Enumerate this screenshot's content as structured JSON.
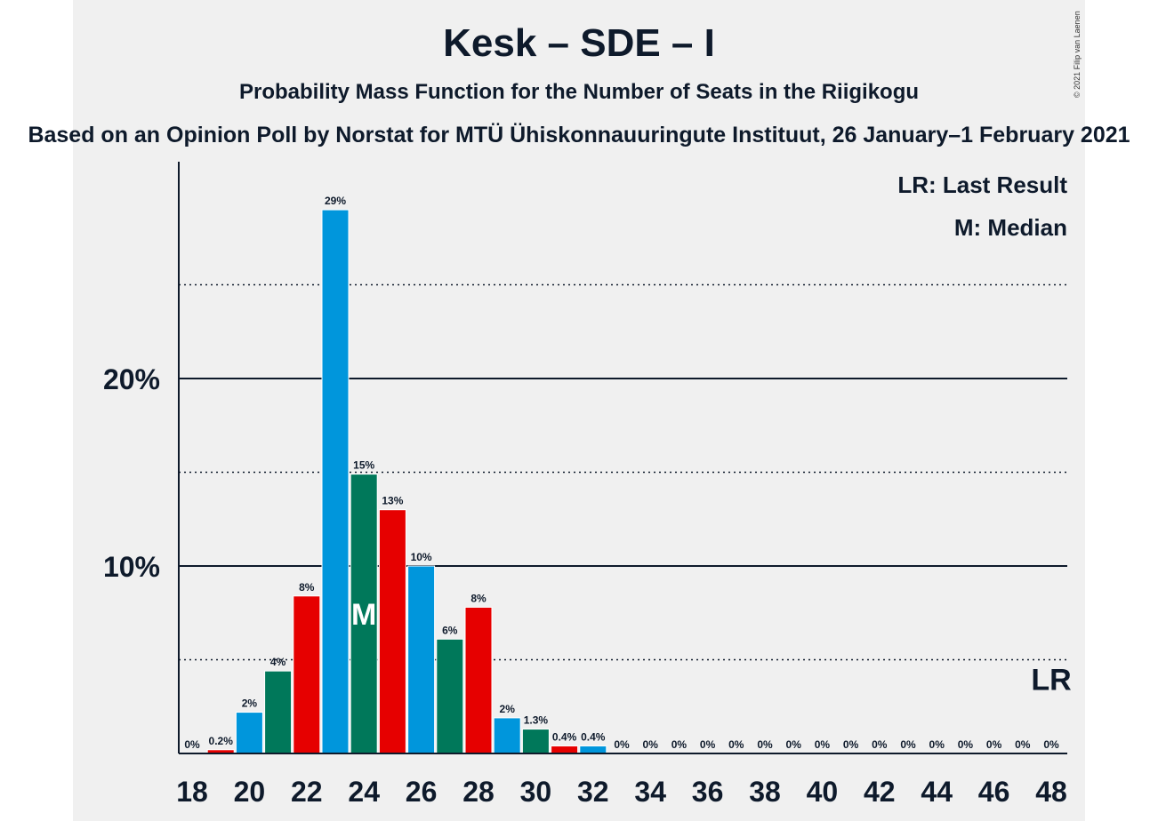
{
  "title": "Kesk – SDE – I",
  "subtitle": "Probability Mass Function for the Number of Seats in the Riigikogu",
  "source": "Based on an Opinion Poll by Norstat for MTÜ Ühiskonnauuringute Instituut, 26 January–1 February 2021",
  "copyright": "© 2021 Filip van Laenen",
  "legend": {
    "last_result": "LR: Last Result",
    "median": "M: Median"
  },
  "chart_data": {
    "type": "bar",
    "title": "Kesk – SDE – I",
    "subtitle": "Probability Mass Function for the Number of Seats in the Riigikogu",
    "x": [
      18,
      19,
      20,
      21,
      22,
      23,
      24,
      25,
      26,
      27,
      28,
      29,
      30,
      31,
      32,
      33,
      34,
      35,
      36,
      37,
      38,
      39,
      40,
      41,
      42,
      43,
      44,
      45,
      46,
      47,
      48
    ],
    "values": [
      0,
      0.2,
      2.2,
      4.4,
      8.4,
      29,
      14.9,
      13,
      10,
      6.1,
      7.8,
      1.9,
      1.3,
      0.4,
      0.4,
      0,
      0,
      0,
      0,
      0,
      0,
      0,
      0,
      0,
      0,
      0,
      0,
      0,
      0,
      0,
      0
    ],
    "data_labels": [
      "0%",
      "0.2%",
      "2%",
      "4%",
      "8%",
      "29%",
      "15%",
      "13%",
      "10%",
      "6%",
      "8%",
      "2%",
      "1.3%",
      "0.4%",
      "0.4%",
      "0%",
      "0%",
      "0%",
      "0%",
      "0%",
      "0%",
      "0%",
      "0%",
      "0%",
      "0%",
      "0%",
      "0%",
      "0%",
      "0%",
      "0%",
      "0%"
    ],
    "x_tick_labels": [
      "18",
      "20",
      "22",
      "24",
      "26",
      "28",
      "30",
      "32",
      "34",
      "36",
      "38",
      "40",
      "42",
      "44",
      "46",
      "48"
    ],
    "y_tick_labels": [
      "10%",
      "20%"
    ],
    "y_major_ticks": [
      10,
      20
    ],
    "y_minor_ticks": [
      5,
      15,
      25
    ],
    "ylim": [
      0,
      31.5
    ],
    "median_seat": 24,
    "median_marker": "M",
    "last_result_seat": 48,
    "last_result_marker": "LR",
    "bar_colors": [
      "#0096dc",
      "#00785a",
      "#e60000"
    ],
    "grid": true
  }
}
